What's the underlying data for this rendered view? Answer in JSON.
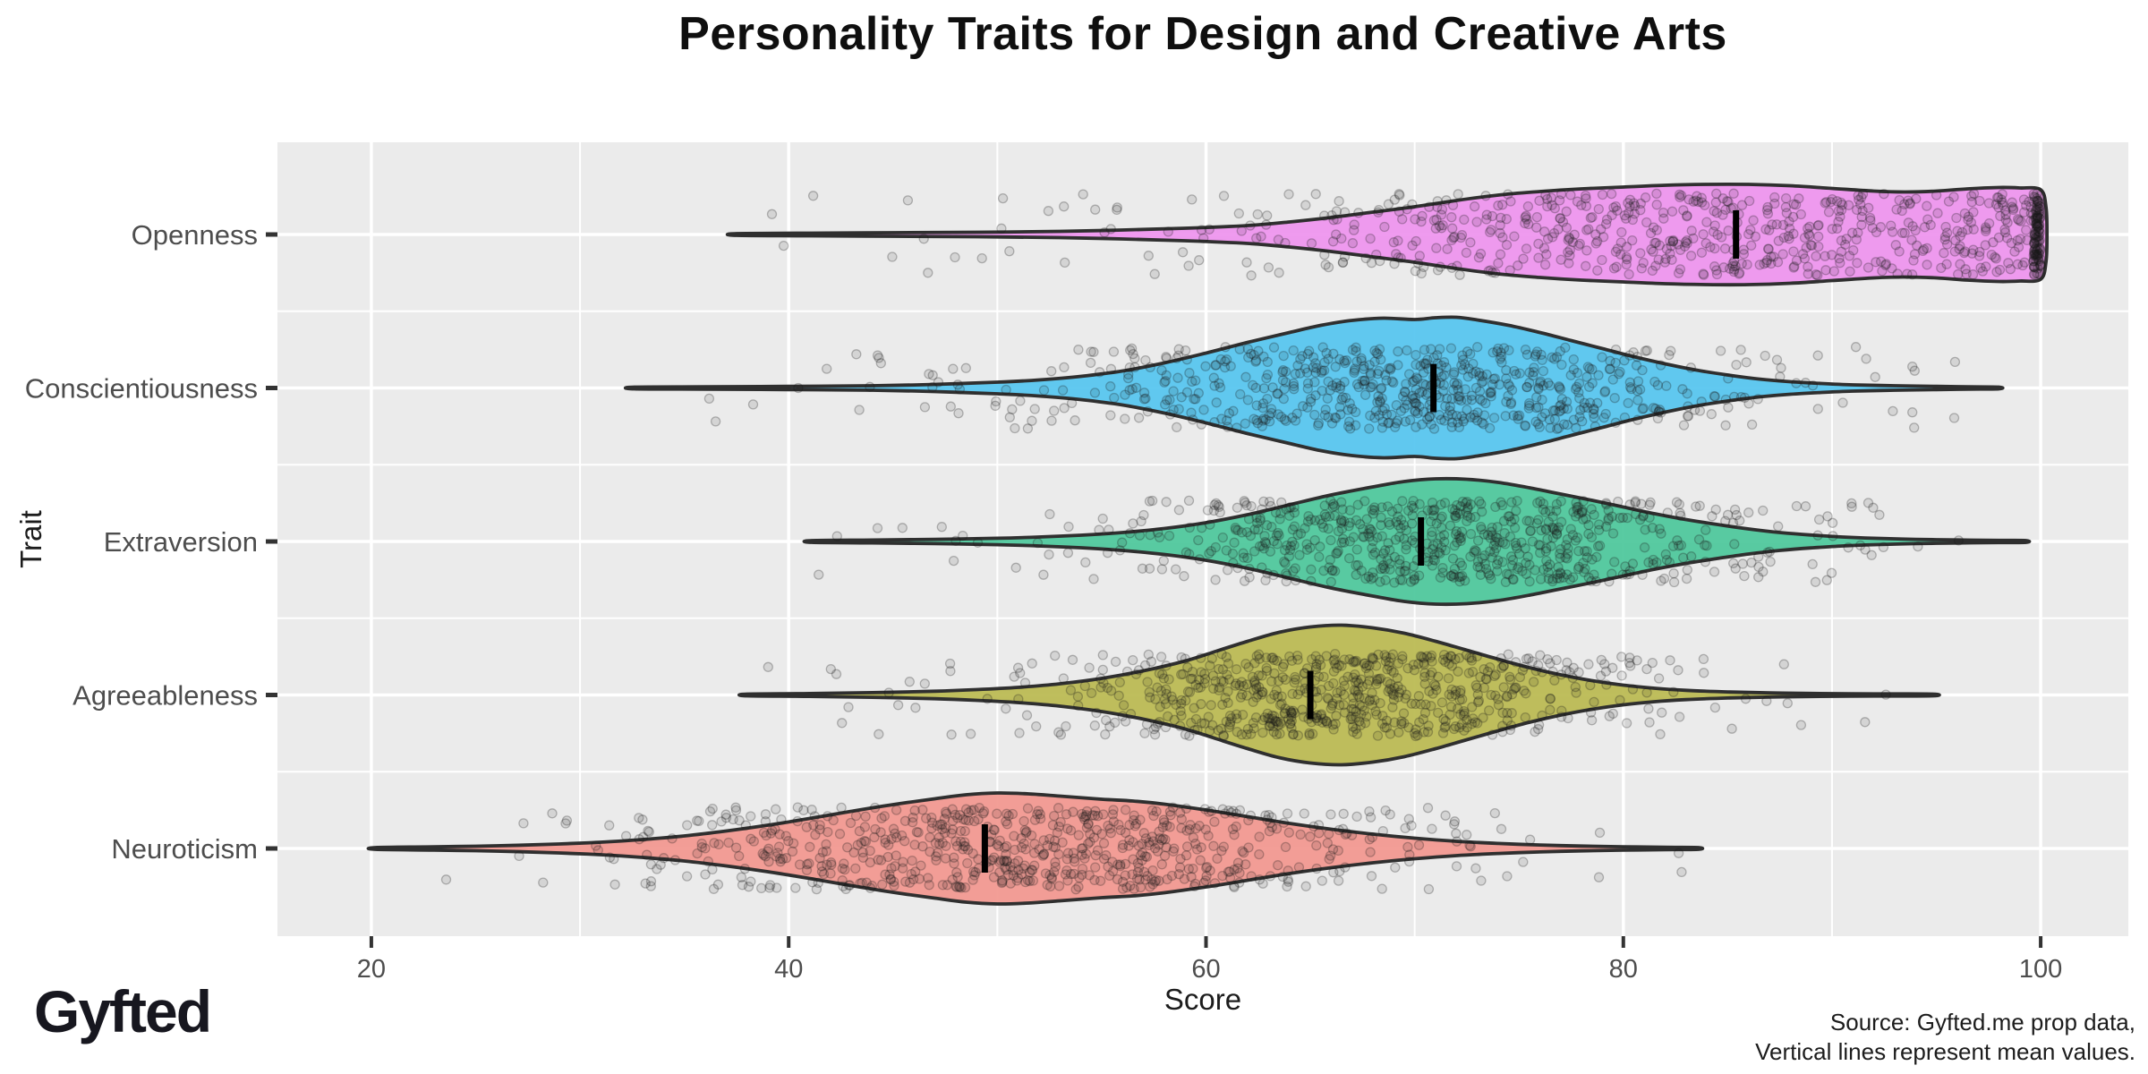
{
  "chart": {
    "panel_bg": "#ebebeb",
    "grid_color": "#ffffff",
    "outline_color": "#2f2f2f",
    "mean_line_color": "#000000",
    "point_color": "#1a1a1a",
    "axis_text_color": "#4d4d4d",
    "axis_title_color": "#1c1c1c",
    "tick_color": "#333333"
  },
  "chart_data": {
    "type": "violin",
    "orientation": "horizontal",
    "title": "Personality Traits for Design and Creative Arts",
    "xlabel": "Score",
    "ylabel": "Trait",
    "x_ticks": [
      20,
      40,
      60,
      80,
      100
    ],
    "x_minor_gridlines": [
      30,
      50,
      70,
      90
    ],
    "x_range_shown": [
      15.5,
      104.2
    ],
    "grid": true,
    "legend": false,
    "note": "Jittered sample points overlaid on each violin; black vertical segment marks the mean.",
    "series": [
      {
        "name": "Openness",
        "color": "#ee93ee",
        "mean": 85.4,
        "range": [
          37.5,
          100
        ],
        "truncated_at": 100,
        "n_points": 620,
        "points_at_max": 115,
        "seed": 11,
        "density": [
          [
            37.5,
            1
          ],
          [
            41,
            1.5
          ],
          [
            45,
            2
          ],
          [
            49,
            2.5
          ],
          [
            53,
            3.5
          ],
          [
            56,
            5
          ],
          [
            59,
            7
          ],
          [
            62,
            10
          ],
          [
            64,
            14
          ],
          [
            66,
            19
          ],
          [
            68,
            25
          ],
          [
            70,
            31
          ],
          [
            72,
            38
          ],
          [
            74,
            44
          ],
          [
            76,
            48
          ],
          [
            78,
            51
          ],
          [
            80,
            53
          ],
          [
            82,
            55
          ],
          [
            84,
            56
          ],
          [
            86,
            56
          ],
          [
            88,
            54.5
          ],
          [
            90,
            51.5
          ],
          [
            92,
            48.5
          ],
          [
            93.5,
            47.5
          ],
          [
            95,
            48.5
          ],
          [
            96.5,
            51
          ],
          [
            98,
            52.5
          ],
          [
            99,
            52
          ],
          [
            100,
            50
          ]
        ]
      },
      {
        "name": "Conscientiousness",
        "color": "#54c4ef",
        "mean": 70.9,
        "range": [
          32.6,
          98
        ],
        "truncated_at": null,
        "n_points": 680,
        "points_at_max": 0,
        "seed": 22,
        "density": [
          [
            32.6,
            1
          ],
          [
            36,
            1.3
          ],
          [
            40,
            1.8
          ],
          [
            44,
            2.5
          ],
          [
            47,
            4
          ],
          [
            50,
            6.5
          ],
          [
            52,
            9
          ],
          [
            54,
            13
          ],
          [
            56,
            19
          ],
          [
            58,
            28
          ],
          [
            60,
            39
          ],
          [
            62,
            51
          ],
          [
            64,
            62
          ],
          [
            65.5,
            70
          ],
          [
            67,
            75.5
          ],
          [
            68.5,
            78
          ],
          [
            70,
            76.5
          ],
          [
            71,
            78.5
          ],
          [
            72,
            79
          ],
          [
            73,
            76
          ],
          [
            74.5,
            70
          ],
          [
            76,
            62
          ],
          [
            77.5,
            53
          ],
          [
            79,
            44
          ],
          [
            80.5,
            35
          ],
          [
            82,
            27
          ],
          [
            83.5,
            20
          ],
          [
            85,
            14.5
          ],
          [
            86.5,
            10
          ],
          [
            88,
            7
          ],
          [
            89.5,
            5
          ],
          [
            91,
            3.5
          ],
          [
            93,
            2.5
          ],
          [
            95,
            1.8
          ],
          [
            96.5,
            1.3
          ],
          [
            98,
            1
          ]
        ]
      },
      {
        "name": "Extraversion",
        "color": "#4bc79a",
        "mean": 70.3,
        "range": [
          41.1,
          99.3
        ],
        "truncated_at": null,
        "n_points": 680,
        "points_at_max": 0,
        "seed": 33,
        "density": [
          [
            41.1,
            1
          ],
          [
            44,
            1.6
          ],
          [
            47,
            2.4
          ],
          [
            50,
            3.6
          ],
          [
            52,
            5
          ],
          [
            54,
            7
          ],
          [
            56,
            10
          ],
          [
            58,
            14.5
          ],
          [
            60,
            21
          ],
          [
            62,
            30
          ],
          [
            64,
            41
          ],
          [
            66,
            52
          ],
          [
            68,
            61
          ],
          [
            69.5,
            67
          ],
          [
            71,
            70
          ],
          [
            72.5,
            69.5
          ],
          [
            74,
            66
          ],
          [
            75.5,
            60
          ],
          [
            77,
            53
          ],
          [
            78.5,
            46
          ],
          [
            80,
            38.5
          ],
          [
            81.5,
            31
          ],
          [
            83,
            24.5
          ],
          [
            84.5,
            19
          ],
          [
            86,
            14
          ],
          [
            87.5,
            10
          ],
          [
            89,
            7.2
          ],
          [
            90.5,
            5
          ],
          [
            92,
            3.6
          ],
          [
            94,
            2.4
          ],
          [
            96,
            1.7
          ],
          [
            98,
            1.2
          ],
          [
            99.3,
            1
          ]
        ]
      },
      {
        "name": "Agreeableness",
        "color": "#bab84f",
        "mean": 65.0,
        "range": [
          38,
          94.8
        ],
        "truncated_at": null,
        "n_points": 680,
        "points_at_max": 0,
        "seed": 44,
        "density": [
          [
            38,
            1
          ],
          [
            41,
            1.6
          ],
          [
            44,
            2.6
          ],
          [
            47,
            4.2
          ],
          [
            49,
            6
          ],
          [
            51,
            8.5
          ],
          [
            53,
            12.5
          ],
          [
            55,
            18.5
          ],
          [
            57,
            27
          ],
          [
            59,
            38
          ],
          [
            60.5,
            49
          ],
          [
            62,
            60
          ],
          [
            63.5,
            70
          ],
          [
            65,
            76
          ],
          [
            66.5,
            78
          ],
          [
            68,
            75
          ],
          [
            69.5,
            69
          ],
          [
            71,
            60
          ],
          [
            72.5,
            50
          ],
          [
            74,
            40
          ],
          [
            75.5,
            30.5
          ],
          [
            77,
            22.5
          ],
          [
            78.5,
            16
          ],
          [
            80,
            11
          ],
          [
            81.5,
            7.5
          ],
          [
            83,
            5.2
          ],
          [
            85,
            3.4
          ],
          [
            87,
            2.3
          ],
          [
            89,
            1.7
          ],
          [
            92,
            1.2
          ],
          [
            94.8,
            1
          ]
        ]
      },
      {
        "name": "Neuroticism",
        "color": "#f2968e",
        "mean": 49.4,
        "range": [
          20.2,
          83.6
        ],
        "truncated_at": null,
        "n_points": 700,
        "points_at_max": 0,
        "seed": 55,
        "density": [
          [
            20.2,
            1
          ],
          [
            23,
            1.8
          ],
          [
            26,
            3
          ],
          [
            29,
            5
          ],
          [
            31,
            7
          ],
          [
            33,
            10
          ],
          [
            35,
            14
          ],
          [
            37,
            19.5
          ],
          [
            39,
            26
          ],
          [
            41,
            33.5
          ],
          [
            43,
            41.5
          ],
          [
            45,
            49
          ],
          [
            47,
            55.5
          ],
          [
            48.5,
            60
          ],
          [
            50,
            62
          ],
          [
            51.5,
            61
          ],
          [
            53,
            58.5
          ],
          [
            55,
            55
          ],
          [
            56.5,
            53
          ],
          [
            58,
            49.5
          ],
          [
            60,
            43
          ],
          [
            62,
            35.5
          ],
          [
            64,
            28
          ],
          [
            66,
            21.5
          ],
          [
            68,
            16
          ],
          [
            70,
            11.5
          ],
          [
            72,
            8
          ],
          [
            74,
            5.6
          ],
          [
            76,
            3.9
          ],
          [
            78,
            2.7
          ],
          [
            80,
            1.9
          ],
          [
            82,
            1.3
          ],
          [
            83.6,
            1
          ]
        ]
      }
    ]
  },
  "footer": {
    "logo": "Gyfted",
    "caption_line1": "Source: Gyfted.me prop data,",
    "caption_line2": "Vertical lines represent mean values."
  }
}
